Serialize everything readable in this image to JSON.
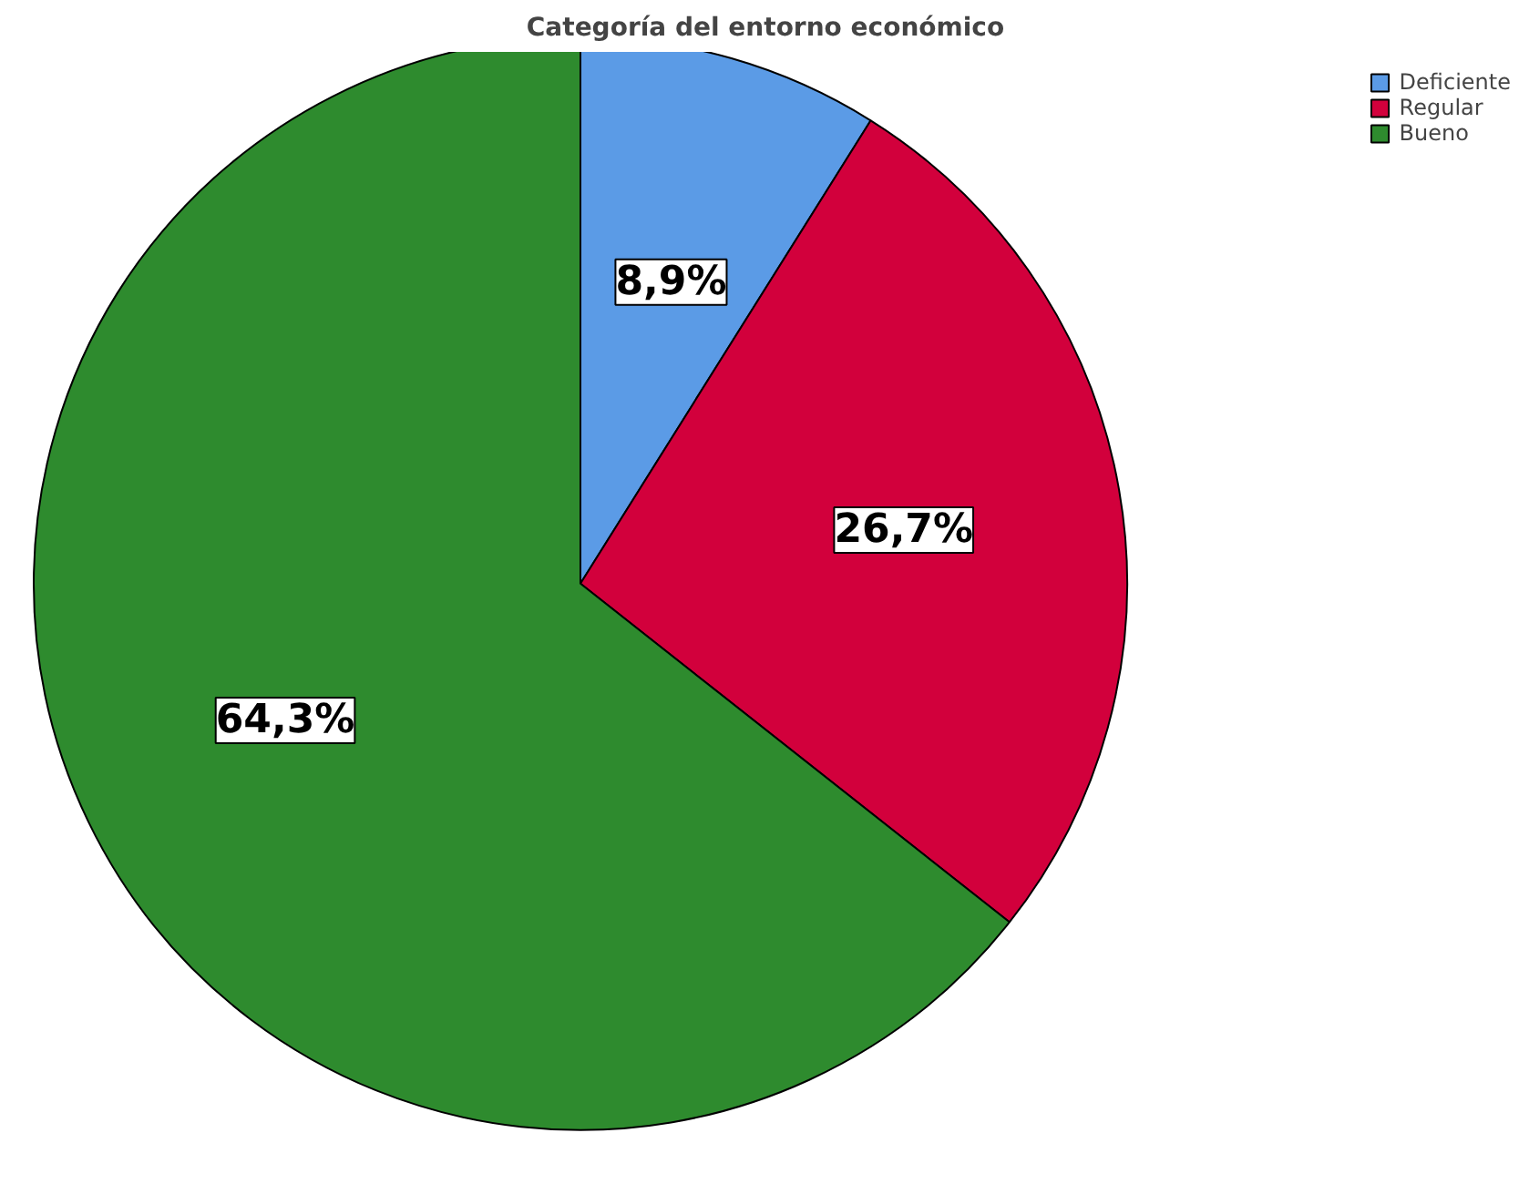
{
  "chart_data": {
    "type": "pie",
    "title": "Categoría del entorno económico",
    "categories": [
      "Deficiente",
      "Regular",
      "Bueno"
    ],
    "values": [
      8.9,
      26.7,
      64.3
    ],
    "colors": [
      "#5b9be6",
      "#d2003c",
      "#2e8b2e"
    ],
    "value_labels": [
      "8,9%",
      "26,7%",
      "64,3%"
    ],
    "legend": "top right"
  }
}
